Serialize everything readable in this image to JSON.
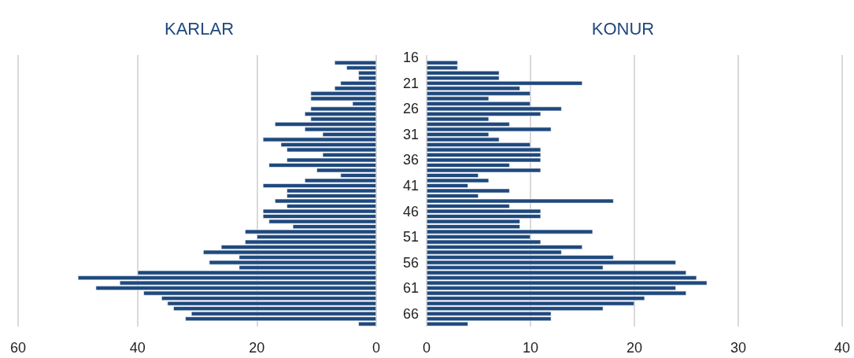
{
  "chart_data": [
    {
      "type": "bar",
      "orientation": "horizontal",
      "title": "KARLAR",
      "color": "#1f497d",
      "grid": "x",
      "tick_labels": "x",
      "xlim": [
        60,
        0
      ],
      "xticks": [
        60,
        40,
        20,
        0
      ],
      "categories": [
        "16",
        null,
        null,
        null,
        null,
        "21",
        null,
        null,
        null,
        null,
        "26",
        null,
        null,
        null,
        null,
        "31",
        null,
        null,
        null,
        null,
        "36",
        null,
        null,
        null,
        null,
        "41",
        null,
        null,
        null,
        null,
        "46",
        null,
        null,
        null,
        null,
        "51",
        null,
        null,
        null,
        null,
        "56",
        null,
        null,
        null,
        null,
        "61",
        null,
        null,
        null,
        null,
        "66",
        null,
        null
      ],
      "values": [
        null,
        7,
        5,
        3,
        3,
        6,
        7,
        11,
        11,
        4,
        11,
        12,
        11,
        17,
        12,
        9,
        19,
        16,
        15,
        9,
        15,
        18,
        10,
        6,
        12,
        19,
        15,
        15,
        17,
        15,
        19,
        19,
        18,
        14,
        22,
        20,
        22,
        26,
        29,
        23,
        28,
        23,
        40,
        50,
        43,
        47,
        39,
        36,
        35,
        34,
        31,
        32,
        3
      ]
    },
    {
      "type": "bar",
      "orientation": "horizontal",
      "title": "KONUR",
      "color": "#1f497d",
      "grid": "x",
      "xlim": [
        0,
        40
      ],
      "xticks": [
        0,
        10,
        20,
        30,
        40
      ],
      "categories": [
        "16",
        null,
        null,
        null,
        null,
        "21",
        null,
        null,
        null,
        null,
        "26",
        null,
        null,
        null,
        null,
        "31",
        null,
        null,
        null,
        null,
        "36",
        null,
        null,
        null,
        null,
        "41",
        null,
        null,
        null,
        null,
        "46",
        null,
        null,
        null,
        null,
        "51",
        null,
        null,
        null,
        null,
        "56",
        null,
        null,
        null,
        null,
        "61",
        null,
        null,
        null,
        null,
        "66",
        null,
        null
      ],
      "values": [
        null,
        3,
        3,
        7,
        7,
        15,
        9,
        10,
        6,
        10,
        13,
        11,
        6,
        8,
        12,
        6,
        7,
        10,
        11,
        11,
        11,
        8,
        11,
        5,
        6,
        4,
        8,
        5,
        18,
        8,
        11,
        11,
        9,
        9,
        16,
        10,
        11,
        15,
        13,
        18,
        24,
        17,
        25,
        26,
        27,
        24,
        25,
        21,
        20,
        17,
        12,
        12,
        4
      ]
    }
  ]
}
